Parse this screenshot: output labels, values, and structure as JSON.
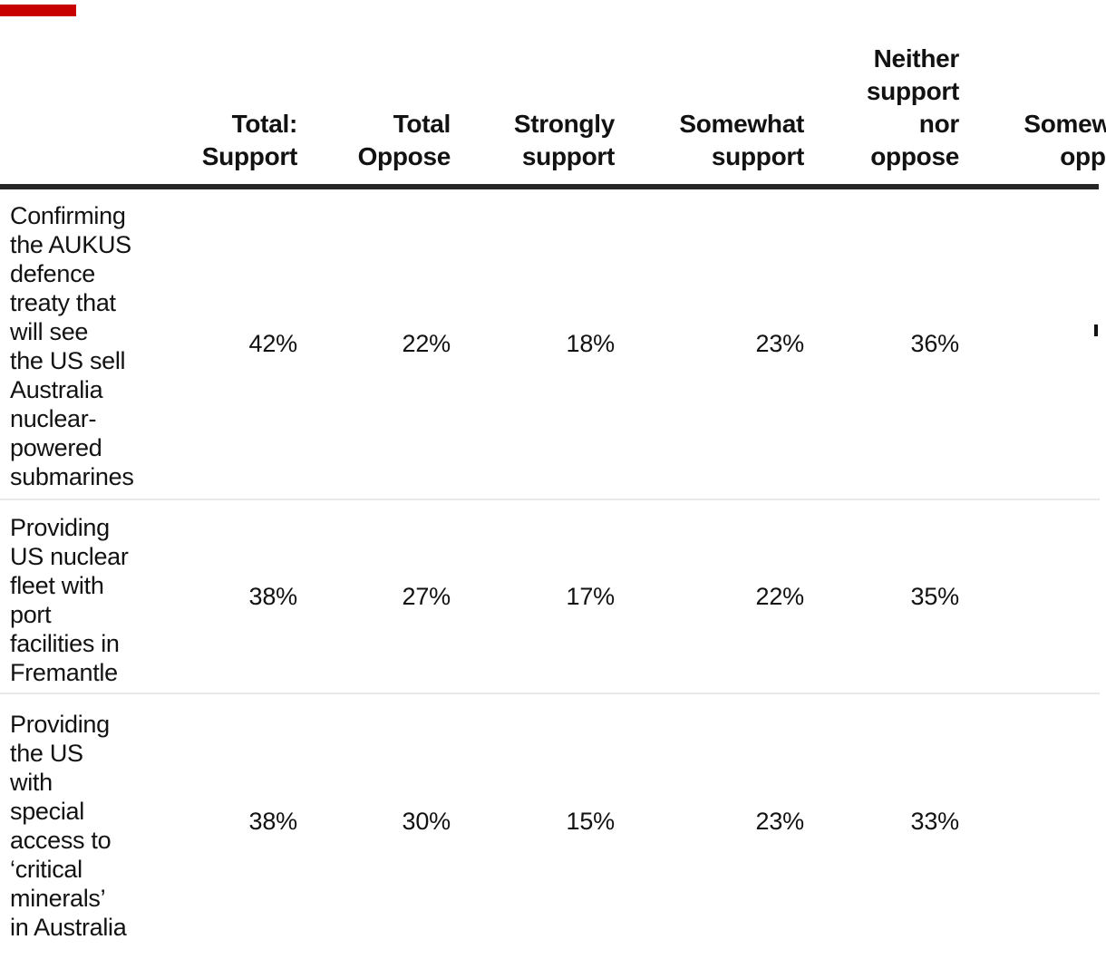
{
  "colors": {
    "background": "#ffffff",
    "text": "#121212",
    "kicker_red": "#c70000",
    "header_rule": "#262626",
    "row_divider": "#e8e8e8"
  },
  "chart_data": {
    "type": "table",
    "title": "",
    "categories": [
      "Confirming the AUKUS defence treaty that will see the US sell Australia nuclear-powered submarines",
      "Providing US nuclear fleet with port facilities in Fremantle",
      "Providing the US with special access to ‘critical minerals’ in Australia"
    ],
    "series": [
      {
        "name": "Total: Support",
        "values": [
          "42%",
          "38%",
          "38%"
        ]
      },
      {
        "name": "Total Oppose",
        "values": [
          "22%",
          "27%",
          "30%"
        ]
      },
      {
        "name": "Strongly support",
        "values": [
          "18%",
          "17%",
          "15%"
        ]
      },
      {
        "name": "Somewhat support",
        "values": [
          "23%",
          "22%",
          "23%"
        ]
      },
      {
        "name": "Neither support nor oppose",
        "values": [
          "36%",
          "35%",
          "33%"
        ]
      },
      {
        "name": "Somewhat oppose",
        "values": [
          "",
          "",
          ""
        ]
      }
    ],
    "layout_hints": {
      "value_alignment": "right",
      "last_column_clipped_at_right_edge": true,
      "grid": "horizontal row dividers only"
    }
  },
  "display": {
    "column_labels": [
      "Total:\nSupport",
      "Total\nOppose",
      "Strongly\nsupport",
      "Somewhat\nsupport",
      "Neither\nsupport\nnor\noppose",
      "Somewhat\noppose"
    ],
    "row_labels": [
      "Confirming\nthe AUKUS\ndefence\ntreaty that\nwill see\nthe US sell\nAustralia\nnuclear-\npowered\nsubmarines",
      "Providing\nUS nuclear\nfleet with\nport\nfacilities in\nFremantle",
      "Providing\nthe US\nwith\nspecial\naccess to\n‘critical\nminerals’\nin Australia"
    ]
  }
}
